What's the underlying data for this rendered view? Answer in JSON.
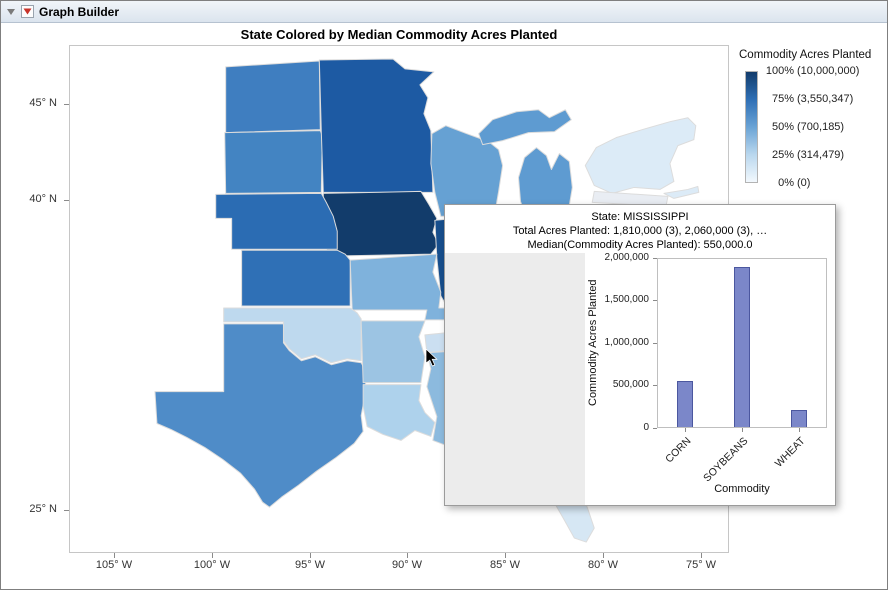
{
  "window": {
    "title": "Graph Builder"
  },
  "tooltip": {
    "line1": "State: MISSISSIPPI",
    "line2": "Total Acres Planted: 1,810,000 (3), 2,060,000 (3), …",
    "line3": "Median(Commodity Acres Planted): 550,000.0"
  },
  "chart_data": [
    {
      "type": "heatmap",
      "subtype": "choropleth map of US states, Blues sequential colormap",
      "title": "State Colored by Median Commodity Acres Planted",
      "xlabel": "",
      "ylabel": "",
      "x_ticks": [
        "105° W",
        "100° W",
        "95° W",
        "90° W",
        "85° W",
        "80° W",
        "75° W"
      ],
      "y_ticks": [
        "45° N",
        "40° N",
        "25° N"
      ],
      "grid": false,
      "legend_position": "right",
      "legend_title": "Commodity Acres Planted",
      "legend_stops": [
        {
          "pct": "100%",
          "value": "(10,000,000)"
        },
        {
          "pct": "75%",
          "value": "(3,550,347)"
        },
        {
          "pct": "50%",
          "value": "(700,185)"
        },
        {
          "pct": "25%",
          "value": "(314,479)"
        },
        {
          "pct": "0%",
          "value": "(0)"
        }
      ],
      "legend_gradient": [
        "#123c6b",
        "#2f6fb5",
        "#6aa3d5",
        "#b9d7ee",
        "#f2f8fd"
      ],
      "states": {
        "ND": {
          "name": "North Dakota",
          "color": "#3f7ec0"
        },
        "SD": {
          "name": "South Dakota",
          "color": "#4384c2"
        },
        "NE": {
          "name": "Nebraska",
          "color": "#2b6cb3"
        },
        "KS": {
          "name": "Kansas",
          "color": "#2f70b6"
        },
        "MN": {
          "name": "Minnesota",
          "color": "#1d5aa3"
        },
        "IA": {
          "name": "Iowa",
          "color": "#123c6b"
        },
        "WI": {
          "name": "Wisconsin",
          "color": "#66a1d3"
        },
        "MI": {
          "name": "Michigan",
          "color": "#5e9bd1"
        },
        "IL": {
          "name": "Illinois",
          "color": "#174e8c"
        },
        "MO": {
          "name": "Missouri",
          "color": "#7fb2dc"
        },
        "OK": {
          "name": "Oklahoma",
          "color": "#bed9ee"
        },
        "TX": {
          "name": "Texas",
          "color": "#4f8cc8"
        },
        "AR": {
          "name": "Arkansas",
          "color": "#9cc4e3"
        },
        "LA": {
          "name": "Louisiana",
          "color": "#aed2ec"
        },
        "MS": {
          "name": "Mississippi",
          "color": "#8cbade"
        },
        "TN": {
          "name": "Tennessee",
          "color": "#cbdff1"
        },
        "NY": {
          "name": "New York",
          "color": "#dcebf7"
        },
        "PA": {
          "name": "Pennsylvania",
          "color": "#e9edf3"
        },
        "FL": {
          "name": "Florida",
          "color": "#d6e7f4"
        }
      }
    },
    {
      "type": "bar",
      "title": "",
      "categories": [
        "CORN",
        "SOYBEANS",
        "WHEAT"
      ],
      "values": [
        550000,
        1900000,
        200000
      ],
      "xlabel": "Commodity",
      "ylabel": "Commodity Acres Planted",
      "ylim": [
        0,
        2000000
      ],
      "y_tick_labels": [
        "0",
        "500,000",
        "1,000,000",
        "1,500,000",
        "2,000,000"
      ],
      "bar_color": "#7b87c9"
    }
  ]
}
